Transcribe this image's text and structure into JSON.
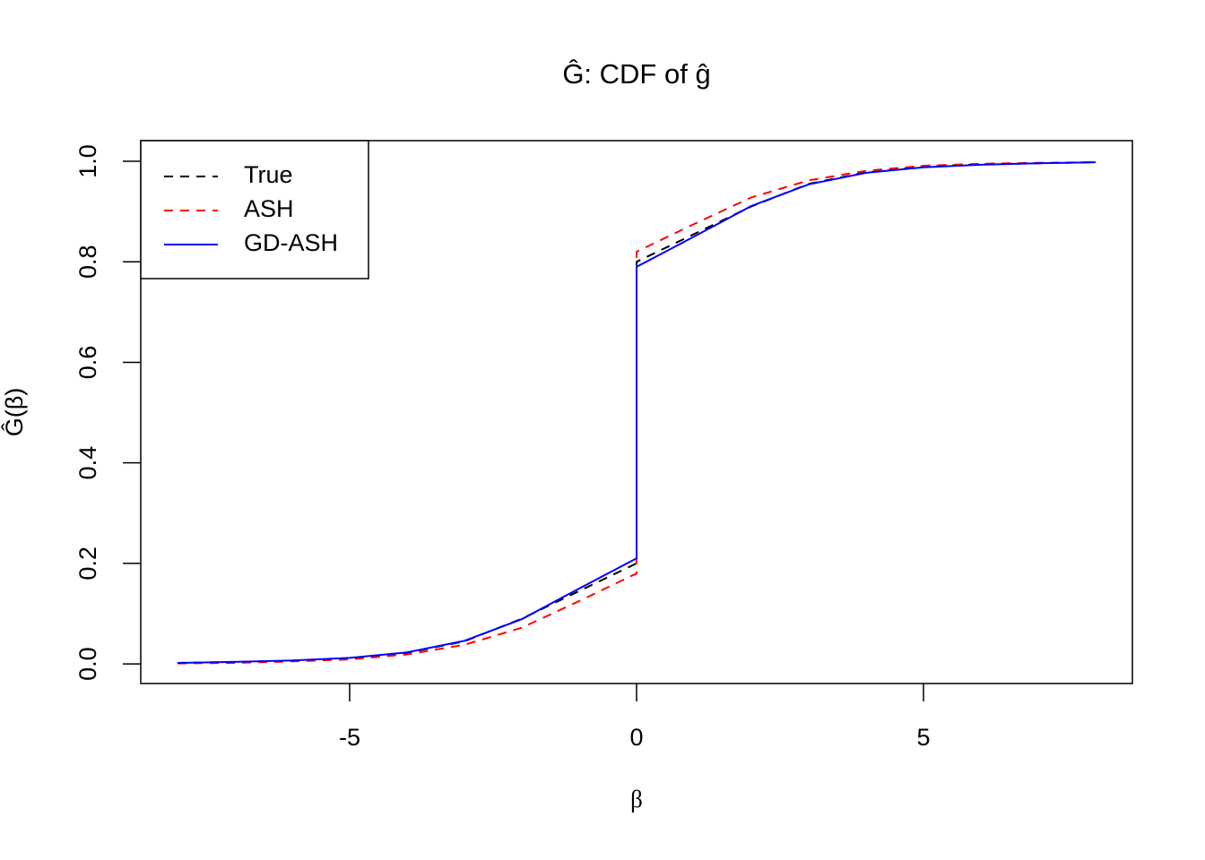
{
  "chart_data": {
    "type": "line",
    "title": "Ĝ: CDF of ĝ",
    "xlabel": "β",
    "ylabel": "Ĝ(β)",
    "x": [
      -8,
      -7,
      -6,
      -5,
      -4,
      -3,
      -2,
      -1,
      0,
      0,
      1,
      2,
      3,
      4,
      5,
      6,
      7,
      8
    ],
    "series": [
      {
        "name": "True",
        "color": "#000000",
        "linestyle": "dashed",
        "values": [
          0.002,
          0.004,
          0.006,
          0.011,
          0.022,
          0.045,
          0.09,
          0.145,
          0.2,
          0.8,
          0.855,
          0.91,
          0.955,
          0.978,
          0.989,
          0.994,
          0.996,
          0.998
        ]
      },
      {
        "name": "ASH",
        "color": "#ff0000",
        "linestyle": "dashed",
        "values": [
          0.001,
          0.002,
          0.005,
          0.009,
          0.019,
          0.038,
          0.072,
          0.125,
          0.18,
          0.82,
          0.875,
          0.928,
          0.962,
          0.981,
          0.991,
          0.995,
          0.997,
          0.998
        ]
      },
      {
        "name": "GD-ASH",
        "color": "#0000ff",
        "linestyle": "solid",
        "values": [
          0.002,
          0.004,
          0.007,
          0.012,
          0.023,
          0.046,
          0.089,
          0.15,
          0.21,
          0.79,
          0.85,
          0.911,
          0.954,
          0.977,
          0.988,
          0.993,
          0.996,
          0.998
        ]
      }
    ],
    "xlim": [
      -8.64,
      8.64
    ],
    "xticks": [
      -5,
      0,
      5
    ],
    "ylim": [
      -0.039,
      1.041
    ],
    "yticks": [
      {
        "value": 0,
        "label": "0.0"
      },
      0.2,
      0.4,
      0.6,
      0.8,
      {
        "value": 1,
        "label": "1.0"
      }
    ],
    "grid": false,
    "legend": "top-left"
  }
}
